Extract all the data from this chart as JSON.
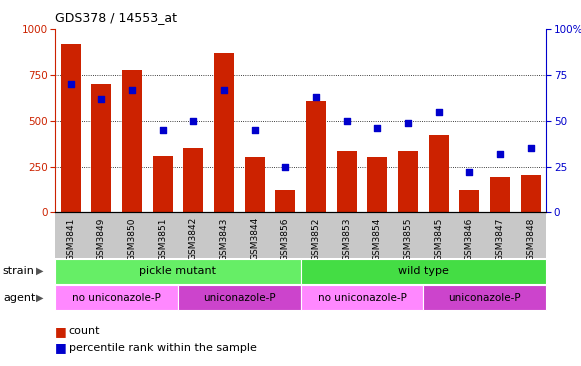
{
  "title": "GDS378 / 14553_at",
  "samples": [
    "GSM3841",
    "GSM3849",
    "GSM3850",
    "GSM3851",
    "GSM3842",
    "GSM3843",
    "GSM3844",
    "GSM3856",
    "GSM3852",
    "GSM3853",
    "GSM3854",
    "GSM3855",
    "GSM3845",
    "GSM3846",
    "GSM3847",
    "GSM3848"
  ],
  "counts": [
    920,
    700,
    780,
    310,
    350,
    870,
    300,
    120,
    610,
    335,
    300,
    335,
    420,
    120,
    195,
    205
  ],
  "percentiles": [
    70,
    62,
    67,
    45,
    50,
    67,
    45,
    25,
    63,
    50,
    46,
    49,
    55,
    22,
    32,
    35
  ],
  "ylim_left": [
    0,
    1000
  ],
  "ylim_right": [
    0,
    100
  ],
  "yticks_left": [
    0,
    250,
    500,
    750,
    1000
  ],
  "yticks_right": [
    0,
    25,
    50,
    75,
    100
  ],
  "bar_color": "#CC2200",
  "dot_color": "#0000CC",
  "strain_groups": [
    {
      "label": "pickle mutant",
      "start": 0,
      "end": 7,
      "color": "#66EE66"
    },
    {
      "label": "wild type",
      "start": 8,
      "end": 15,
      "color": "#44DD44"
    }
  ],
  "agent_groups": [
    {
      "label": "no uniconazole-P",
      "start": 0,
      "end": 3,
      "color": "#FF88FF"
    },
    {
      "label": "uniconazole-P",
      "start": 4,
      "end": 7,
      "color": "#CC44CC"
    },
    {
      "label": "no uniconazole-P",
      "start": 8,
      "end": 11,
      "color": "#FF88FF"
    },
    {
      "label": "uniconazole-P",
      "start": 12,
      "end": 15,
      "color": "#CC44CC"
    }
  ],
  "legend_count_label": "count",
  "legend_pct_label": "percentile rank within the sample",
  "strain_label": "strain",
  "agent_label": "agent",
  "bar_color_left": "#CC2200",
  "tick_color_right": "#0000CC",
  "xtick_bg_color": "#C8C8C8",
  "grid_yticks": [
    250,
    500,
    750
  ]
}
